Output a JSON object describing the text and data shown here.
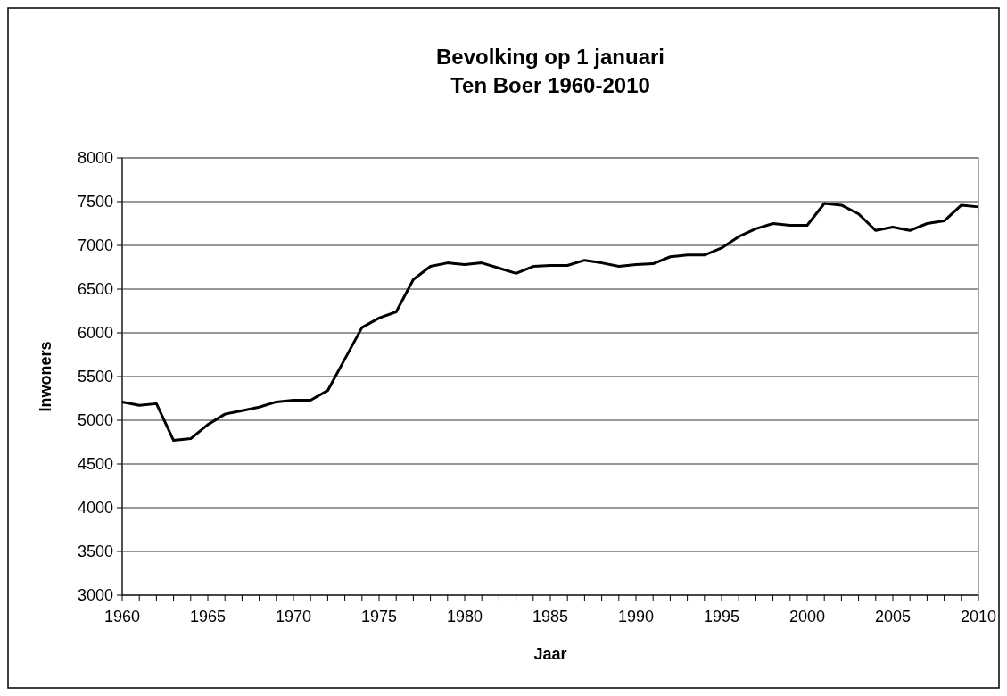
{
  "chart_data": {
    "type": "line",
    "title": "Bevolking op 1 januari\nTen Boer 1960-2010",
    "xlabel": "Jaar",
    "ylabel": "Inwoners",
    "x": [
      1960,
      1961,
      1962,
      1963,
      1964,
      1965,
      1966,
      1967,
      1968,
      1969,
      1970,
      1971,
      1972,
      1973,
      1974,
      1975,
      1976,
      1977,
      1978,
      1979,
      1980,
      1981,
      1982,
      1983,
      1984,
      1985,
      1986,
      1987,
      1988,
      1989,
      1990,
      1991,
      1992,
      1993,
      1994,
      1995,
      1996,
      1997,
      1998,
      1999,
      2000,
      2001,
      2002,
      2003,
      2004,
      2005,
      2006,
      2007,
      2008,
      2009,
      2010
    ],
    "series": [
      {
        "color": "#000000",
        "values": [
          5210,
          5170,
          5190,
          4770,
          4790,
          4950,
          5070,
          5110,
          5150,
          5210,
          5230,
          5230,
          5340,
          5700,
          6060,
          6170,
          6240,
          6610,
          6760,
          6800,
          6780,
          6800,
          6740,
          6680,
          6760,
          6770,
          6770,
          6830,
          6800,
          6760,
          6780,
          6790,
          6870,
          6890,
          6890,
          6970,
          7100,
          7190,
          7250,
          7230,
          7230,
          7480,
          7460,
          7360,
          7170,
          7210,
          7170,
          7250,
          7280,
          7460,
          7440
        ]
      }
    ],
    "xlim": [
      1960,
      2010
    ],
    "xticks": [
      1960,
      {
        "value": 1961,
        "label": null
      },
      {
        "value": 1962,
        "label": null
      },
      {
        "value": 1963,
        "label": null
      },
      {
        "value": 1964,
        "label": null
      },
      1965,
      {
        "value": 1966,
        "label": null
      },
      {
        "value": 1967,
        "label": null
      },
      {
        "value": 1968,
        "label": null
      },
      {
        "value": 1969,
        "label": null
      },
      1970,
      {
        "value": 1971,
        "label": null
      },
      {
        "value": 1972,
        "label": null
      },
      {
        "value": 1973,
        "label": null
      },
      {
        "value": 1974,
        "label": null
      },
      1975,
      {
        "value": 1976,
        "label": null
      },
      {
        "value": 1977,
        "label": null
      },
      {
        "value": 1978,
        "label": null
      },
      {
        "value": 1979,
        "label": null
      },
      1980,
      {
        "value": 1981,
        "label": null
      },
      {
        "value": 1982,
        "label": null
      },
      {
        "value": 1983,
        "label": null
      },
      {
        "value": 1984,
        "label": null
      },
      1985,
      {
        "value": 1986,
        "label": null
      },
      {
        "value": 1987,
        "label": null
      },
      {
        "value": 1988,
        "label": null
      },
      {
        "value": 1989,
        "label": null
      },
      1990,
      {
        "value": 1991,
        "label": null
      },
      {
        "value": 1992,
        "label": null
      },
      {
        "value": 1993,
        "label": null
      },
      {
        "value": 1994,
        "label": null
      },
      1995,
      {
        "value": 1996,
        "label": null
      },
      {
        "value": 1997,
        "label": null
      },
      {
        "value": 1998,
        "label": null
      },
      {
        "value": 1999,
        "label": null
      },
      2000,
      {
        "value": 2001,
        "label": null
      },
      {
        "value": 2002,
        "label": null
      },
      {
        "value": 2003,
        "label": null
      },
      {
        "value": 2004,
        "label": null
      },
      2005,
      {
        "value": 2006,
        "label": null
      },
      {
        "value": 2007,
        "label": null
      },
      {
        "value": 2008,
        "label": null
      },
      {
        "value": 2009,
        "label": null
      },
      2010
    ],
    "ylim": [
      3000,
      8000
    ],
    "yticks": [
      3000,
      3500,
      4000,
      4500,
      5000,
      5500,
      6000,
      6500,
      7000,
      7500,
      8000
    ],
    "grid": "y",
    "marker": "none",
    "line_style": "solid"
  }
}
